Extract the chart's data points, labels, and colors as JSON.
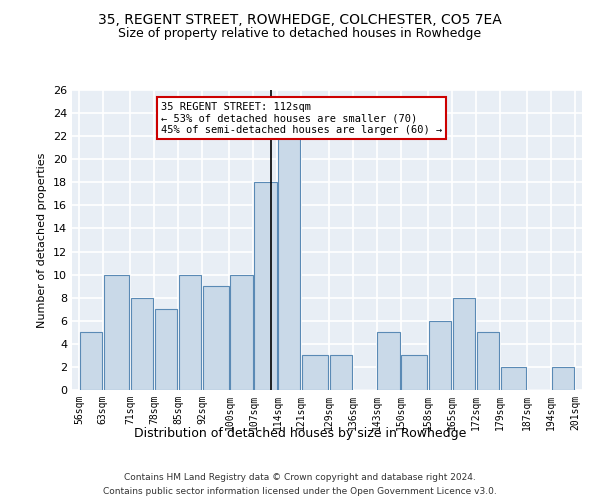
{
  "title1": "35, REGENT STREET, ROWHEDGE, COLCHESTER, CO5 7EA",
  "title2": "Size of property relative to detached houses in Rowhedge",
  "xlabel": "Distribution of detached houses by size in Rowhedge",
  "ylabel": "Number of detached properties",
  "bin_edges": [
    56,
    63,
    71,
    78,
    85,
    92,
    100,
    107,
    114,
    121,
    129,
    136,
    143,
    150,
    158,
    165,
    172,
    179,
    187,
    194,
    201
  ],
  "bin_heights": [
    5,
    10,
    8,
    7,
    10,
    9,
    10,
    18,
    22,
    3,
    3,
    0,
    5,
    3,
    6,
    8,
    5,
    2,
    0,
    2
  ],
  "bar_color": "#c9d9e8",
  "bar_edge_color": "#5a8ab5",
  "vline_x": 112,
  "vline_color": "#000000",
  "ylim": [
    0,
    26
  ],
  "yticks": [
    0,
    2,
    4,
    6,
    8,
    10,
    12,
    14,
    16,
    18,
    20,
    22,
    24,
    26
  ],
  "annotation_text": "35 REGENT STREET: 112sqm\n← 53% of detached houses are smaller (70)\n45% of semi-detached houses are larger (60) →",
  "annotation_box_color": "#ffffff",
  "annotation_box_edge": "#cc0000",
  "footer1": "Contains HM Land Registry data © Crown copyright and database right 2024.",
  "footer2": "Contains public sector information licensed under the Open Government Licence v3.0.",
  "background_color": "#e8eef5",
  "grid_color": "#ffffff",
  "title1_fontsize": 10,
  "title2_fontsize": 9
}
